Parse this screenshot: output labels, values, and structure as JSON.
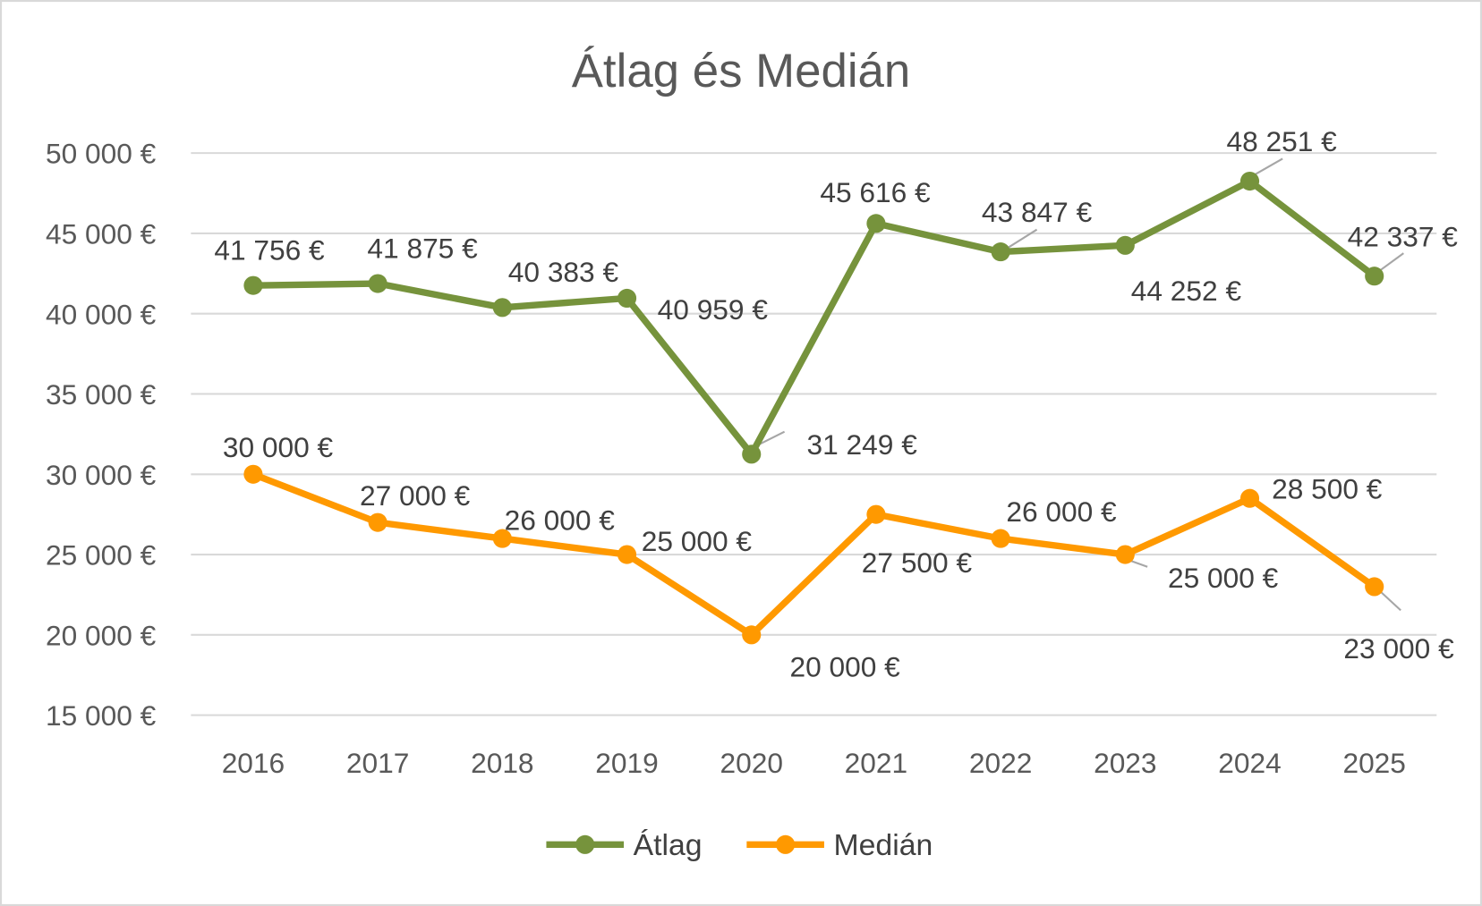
{
  "chart_data": {
    "type": "line",
    "title": "Átlag és Medián",
    "xlabel": "",
    "ylabel": "",
    "categories": [
      "2016",
      "2017",
      "2018",
      "2019",
      "2020",
      "2021",
      "2022",
      "2023",
      "2024",
      "2025"
    ],
    "ylim": [
      15000,
      50000
    ],
    "yticks": [
      15000,
      20000,
      25000,
      30000,
      35000,
      40000,
      45000,
      50000
    ],
    "ytick_labels": [
      "15 000 €",
      "20 000 €",
      "25 000 €",
      "30 000 €",
      "35 000 €",
      "40 000 €",
      "45 000 €",
      "50 000 €"
    ],
    "grid": true,
    "legend_position": "bottom",
    "series": [
      {
        "name": "Átlag",
        "color": "#76933C",
        "values": [
          41756,
          41875,
          40383,
          40959,
          31249,
          45616,
          43847,
          44252,
          48251,
          42337
        ],
        "labels": [
          "41 756 €",
          "41 875 €",
          "40 383 €",
          "40 959 €",
          "31 249 €",
          "45 616 €",
          "43 847 €",
          "44 252 €",
          "48 251 €",
          "42 337 €"
        ]
      },
      {
        "name": "Medián",
        "color": "#FF9900",
        "values": [
          30000,
          27000,
          26000,
          25000,
          20000,
          27500,
          26000,
          25000,
          28500,
          23000
        ],
        "labels": [
          "30 000 €",
          "27 000 €",
          "26 000 €",
          "25 000 €",
          "20 000 €",
          "27 500 €",
          "26 000 €",
          "25 000 €",
          "28 500 €",
          "23 000 €"
        ]
      }
    ]
  }
}
